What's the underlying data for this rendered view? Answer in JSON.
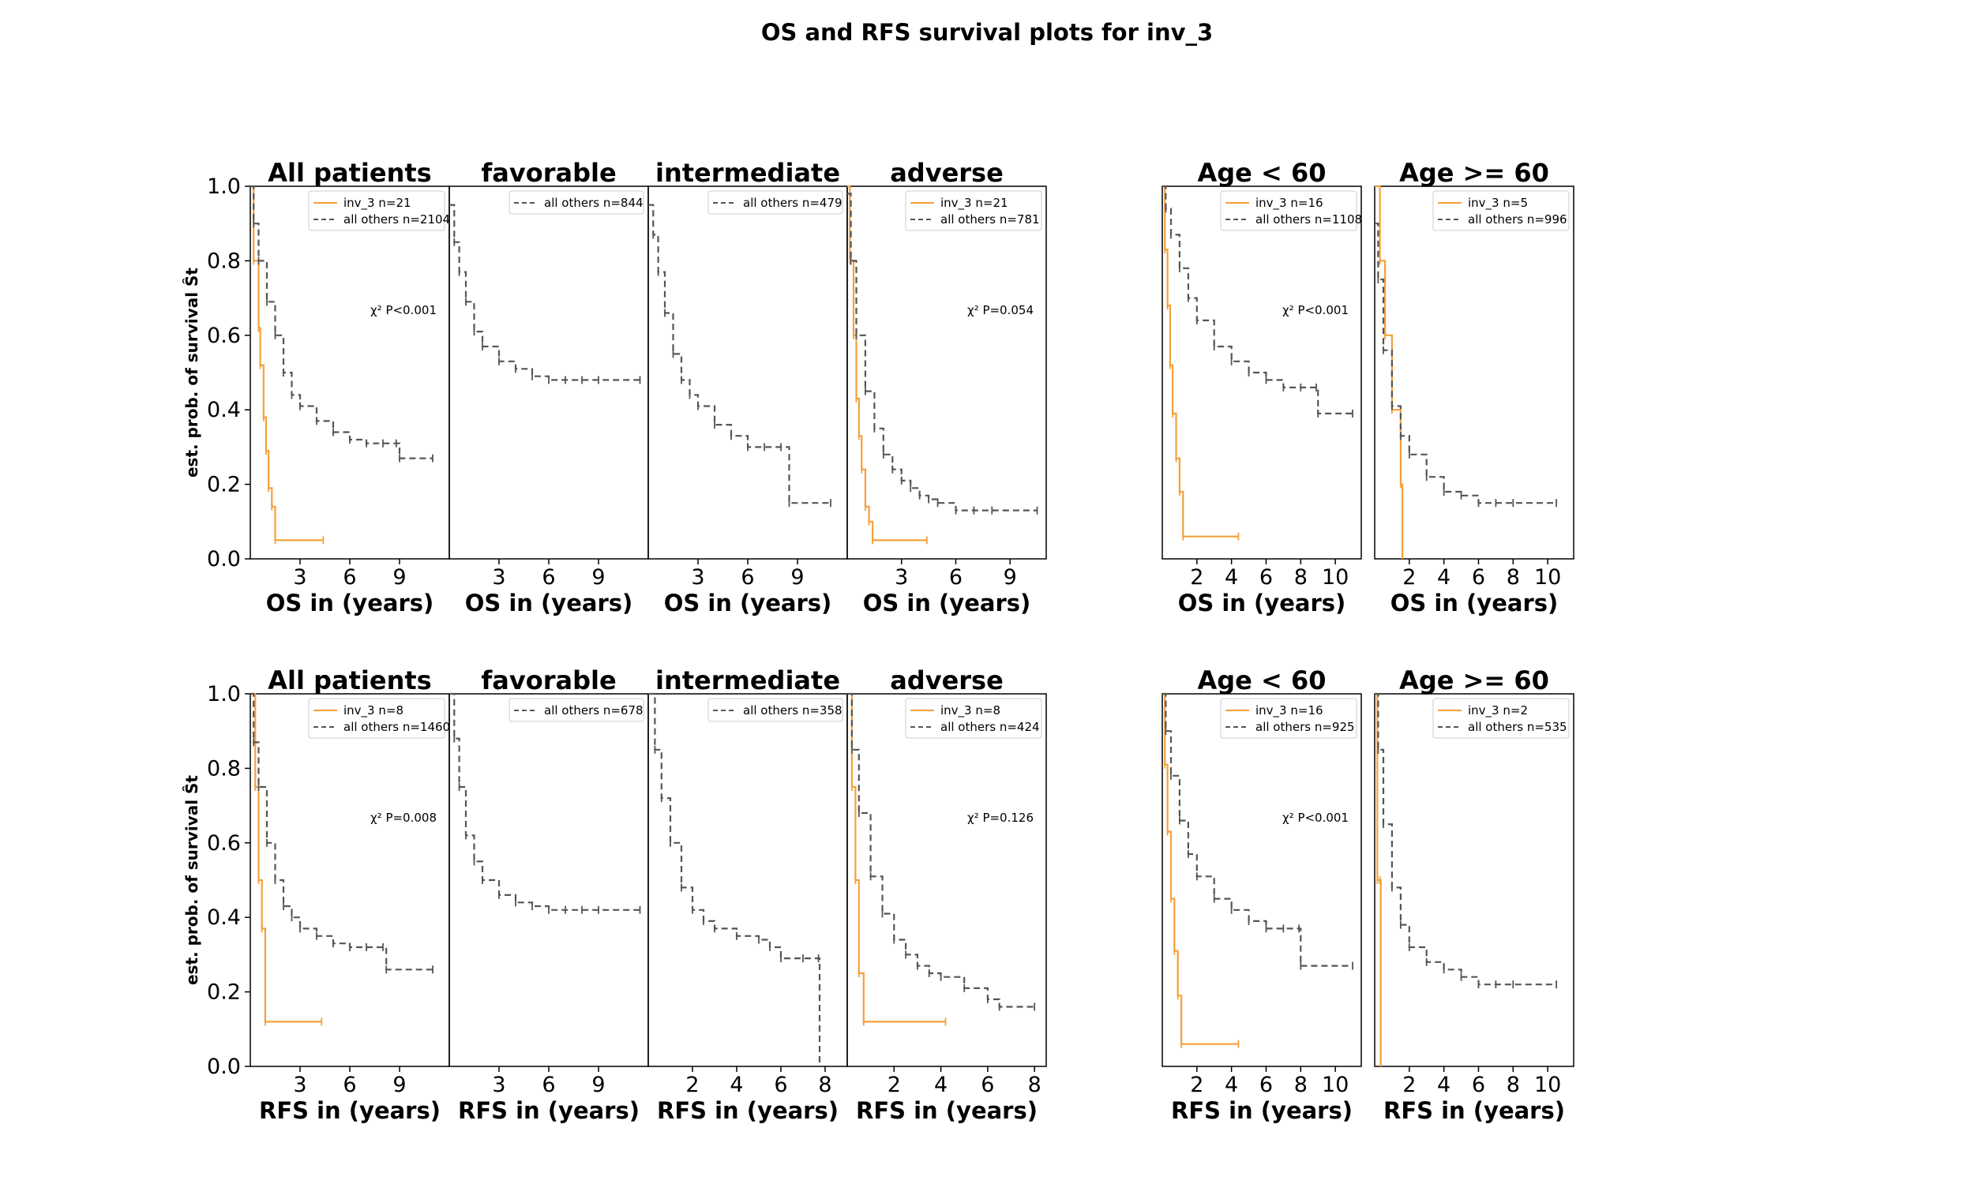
{
  "figure_title": "OS and RFS survival plots for inv_3",
  "colors": {
    "inv3": "#f5a03a",
    "others": "#555555",
    "axes": "#000000"
  },
  "chart_data": [
    {
      "type": "line",
      "row": 0,
      "col": 0,
      "title": "All patients",
      "xlabel": "OS in (years)",
      "ylabel": "est. prob. of survival Ŝt",
      "xlim": [
        0,
        12
      ],
      "xticks": [
        3,
        6,
        9
      ],
      "ylim": [
        0,
        1
      ],
      "yticks": [
        "0.0",
        "0.2",
        "0.4",
        "0.6",
        "0.8",
        "1.0"
      ],
      "pvalue": "χ² P<0.001",
      "series": [
        {
          "name": "inv_3 n=21",
          "style": "solid",
          "x": [
            0,
            0.2,
            0.5,
            0.6,
            0.8,
            0.95,
            1.1,
            1.3,
            1.5,
            4.4
          ],
          "y": [
            1.0,
            0.8,
            0.62,
            0.52,
            0.38,
            0.29,
            0.19,
            0.14,
            0.05,
            0.05
          ]
        },
        {
          "name": "all others n=2104",
          "style": "dashed",
          "x": [
            0,
            0.2,
            0.5,
            1,
            1.5,
            2,
            2.5,
            3,
            4,
            5,
            6,
            7,
            8,
            8.8,
            9,
            11
          ],
          "y": [
            1.0,
            0.9,
            0.8,
            0.69,
            0.6,
            0.5,
            0.44,
            0.41,
            0.37,
            0.34,
            0.32,
            0.31,
            0.31,
            0.31,
            0.27,
            0.27
          ]
        }
      ]
    },
    {
      "type": "line",
      "row": 0,
      "col": 1,
      "title": "favorable",
      "xlabel": "OS in (years)",
      "xlim": [
        0,
        12
      ],
      "xticks": [
        3,
        6,
        9
      ],
      "ylim": [
        0,
        1
      ],
      "series": [
        {
          "name": "all others n=844",
          "style": "dashed",
          "x": [
            0,
            0.3,
            0.6,
            1,
            1.5,
            2,
            3,
            4,
            5,
            6,
            7,
            8,
            9,
            11.5
          ],
          "y": [
            0.95,
            0.85,
            0.77,
            0.69,
            0.61,
            0.57,
            0.53,
            0.51,
            0.49,
            0.48,
            0.48,
            0.48,
            0.48,
            0.48
          ]
        }
      ]
    },
    {
      "type": "line",
      "row": 0,
      "col": 2,
      "title": "intermediate",
      "xlabel": "OS in (years)",
      "xlim": [
        0,
        12
      ],
      "xticks": [
        3,
        6,
        9
      ],
      "ylim": [
        0,
        1
      ],
      "series": [
        {
          "name": "all others n=479",
          "style": "dashed",
          "x": [
            0,
            0.3,
            0.6,
            1,
            1.5,
            2,
            2.5,
            3,
            4,
            5,
            6,
            7,
            8,
            8.5,
            11
          ],
          "y": [
            0.95,
            0.87,
            0.77,
            0.66,
            0.55,
            0.48,
            0.44,
            0.41,
            0.36,
            0.33,
            0.3,
            0.3,
            0.3,
            0.15,
            0.15
          ]
        }
      ]
    },
    {
      "type": "line",
      "row": 0,
      "col": 3,
      "title": "adverse",
      "xlabel": "OS in (years)",
      "xlim": [
        0,
        11
      ],
      "xticks": [
        3,
        6,
        9
      ],
      "ylim": [
        0,
        1
      ],
      "pvalue": "χ² P=0.054",
      "series": [
        {
          "name": "inv_3 n=21",
          "style": "solid",
          "x": [
            0,
            0.15,
            0.35,
            0.5,
            0.65,
            0.8,
            1.0,
            1.2,
            1.4,
            4.4
          ],
          "y": [
            1.0,
            0.8,
            0.6,
            0.43,
            0.33,
            0.24,
            0.14,
            0.1,
            0.05,
            0.05
          ]
        },
        {
          "name": "all others n=781",
          "style": "dashed",
          "x": [
            0,
            0.2,
            0.5,
            1,
            1.5,
            2,
            2.5,
            3,
            3.5,
            4,
            4.5,
            5,
            6,
            7,
            8,
            10.5
          ],
          "y": [
            0.98,
            0.8,
            0.6,
            0.45,
            0.35,
            0.28,
            0.24,
            0.21,
            0.19,
            0.17,
            0.16,
            0.15,
            0.13,
            0.13,
            0.13,
            0.13
          ]
        }
      ]
    },
    {
      "type": "line",
      "row": 0,
      "col": 4,
      "title": "Age < 60",
      "xlabel": "OS in (years)",
      "xlim": [
        0,
        11.5
      ],
      "xticks": [
        2,
        4,
        6,
        8,
        10
      ],
      "ylim": [
        0,
        1
      ],
      "pvalue": "χ² P<0.001",
      "series": [
        {
          "name": "inv_3 n=16",
          "style": "solid",
          "x": [
            0,
            0.15,
            0.3,
            0.45,
            0.6,
            0.8,
            1.0,
            1.2,
            4.4
          ],
          "y": [
            1.0,
            0.83,
            0.68,
            0.52,
            0.39,
            0.27,
            0.18,
            0.06,
            0.06
          ]
        },
        {
          "name": "all others n=1108",
          "style": "dashed",
          "x": [
            0,
            0.2,
            0.5,
            1,
            1.5,
            2,
            3,
            4,
            5,
            6,
            7,
            8,
            8.9,
            9,
            11
          ],
          "y": [
            1.0,
            0.94,
            0.87,
            0.78,
            0.7,
            0.64,
            0.57,
            0.53,
            0.5,
            0.48,
            0.46,
            0.46,
            0.46,
            0.39,
            0.39
          ]
        }
      ]
    },
    {
      "type": "line",
      "row": 0,
      "col": 5,
      "title": "Age >= 60",
      "xlabel": "OS in (years)",
      "xlim": [
        0,
        11.5
      ],
      "xticks": [
        2,
        4,
        6,
        8,
        10
      ],
      "ylim": [
        0,
        1
      ],
      "series": [
        {
          "name": "inv_3 n=5",
          "style": "solid",
          "x": [
            0,
            0.3,
            0.6,
            1.0,
            1.5,
            1.6
          ],
          "y": [
            1.0,
            0.8,
            0.6,
            0.4,
            0.2,
            0.0
          ]
        },
        {
          "name": "all others n=996",
          "style": "dashed",
          "x": [
            0,
            0.2,
            0.5,
            1,
            1.5,
            2,
            3,
            4,
            5,
            6,
            7,
            8,
            10.5
          ],
          "y": [
            0.9,
            0.75,
            0.56,
            0.41,
            0.33,
            0.28,
            0.22,
            0.18,
            0.17,
            0.15,
            0.15,
            0.15,
            0.15
          ]
        }
      ]
    },
    {
      "type": "line",
      "row": 1,
      "col": 0,
      "title": "All patients",
      "xlabel": "RFS in (years)",
      "ylabel": "est. prob. of survival Ŝt",
      "xlim": [
        0,
        12
      ],
      "xticks": [
        3,
        6,
        9
      ],
      "ylim": [
        0,
        1
      ],
      "yticks": [
        "0.0",
        "0.2",
        "0.4",
        "0.6",
        "0.8",
        "1.0"
      ],
      "pvalue": "χ² P=0.008",
      "series": [
        {
          "name": "inv_3 n=8",
          "style": "solid",
          "x": [
            0,
            0.3,
            0.5,
            0.7,
            0.9,
            4.3
          ],
          "y": [
            1.0,
            0.75,
            0.5,
            0.37,
            0.12,
            0.12
          ]
        },
        {
          "name": "all others n=1460",
          "style": "dashed",
          "x": [
            0,
            0.2,
            0.5,
            1,
            1.5,
            2,
            2.5,
            3,
            4,
            5,
            6,
            7,
            8,
            8.2,
            11
          ],
          "y": [
            1.0,
            0.87,
            0.75,
            0.6,
            0.5,
            0.43,
            0.4,
            0.37,
            0.35,
            0.33,
            0.32,
            0.32,
            0.32,
            0.26,
            0.26
          ]
        }
      ]
    },
    {
      "type": "line",
      "row": 1,
      "col": 1,
      "title": "favorable",
      "xlabel": "RFS in (years)",
      "xlim": [
        0,
        12
      ],
      "xticks": [
        3,
        6,
        9
      ],
      "ylim": [
        0,
        1
      ],
      "series": [
        {
          "name": "all others n=678",
          "style": "dashed",
          "x": [
            0,
            0.3,
            0.6,
            1,
            1.5,
            2,
            3,
            4,
            5,
            6,
            7,
            8,
            9,
            11.5
          ],
          "y": [
            1.0,
            0.88,
            0.75,
            0.62,
            0.55,
            0.5,
            0.46,
            0.44,
            0.43,
            0.42,
            0.42,
            0.42,
            0.42,
            0.42
          ]
        }
      ]
    },
    {
      "type": "line",
      "row": 1,
      "col": 2,
      "title": "intermediate",
      "xlabel": "RFS in (years)",
      "xlim": [
        0,
        9
      ],
      "xticks": [
        2,
        4,
        6,
        8
      ],
      "ylim": [
        0,
        1
      ],
      "series": [
        {
          "name": "all others n=358",
          "style": "dashed",
          "x": [
            0,
            0.3,
            0.6,
            1,
            1.5,
            2,
            2.5,
            3,
            4,
            5,
            5.5,
            6,
            7,
            7.7,
            7.75
          ],
          "y": [
            1.0,
            0.85,
            0.72,
            0.6,
            0.48,
            0.42,
            0.39,
            0.37,
            0.35,
            0.34,
            0.32,
            0.29,
            0.29,
            0.29,
            0.0
          ]
        }
      ]
    },
    {
      "type": "line",
      "row": 1,
      "col": 3,
      "title": "adverse",
      "xlabel": "RFS in (years)",
      "xlim": [
        0,
        8.5
      ],
      "xticks": [
        2,
        4,
        6,
        8
      ],
      "ylim": [
        0,
        1
      ],
      "pvalue": "χ² P=0.126",
      "series": [
        {
          "name": "inv_3 n=8",
          "style": "solid",
          "x": [
            0,
            0.2,
            0.35,
            0.5,
            0.7,
            4.2
          ],
          "y": [
            1.0,
            0.75,
            0.5,
            0.25,
            0.12,
            0.12
          ]
        },
        {
          "name": "all others n=424",
          "style": "dashed",
          "x": [
            0,
            0.2,
            0.5,
            1,
            1.5,
            2,
            2.5,
            3,
            3.5,
            4,
            5,
            6,
            6.5,
            8
          ],
          "y": [
            1.0,
            0.85,
            0.68,
            0.51,
            0.41,
            0.34,
            0.3,
            0.27,
            0.25,
            0.24,
            0.21,
            0.18,
            0.16,
            0.16
          ]
        }
      ]
    },
    {
      "type": "line",
      "row": 1,
      "col": 4,
      "title": "Age < 60",
      "xlabel": "RFS in (years)",
      "xlim": [
        0,
        11.5
      ],
      "xticks": [
        2,
        4,
        6,
        8,
        10
      ],
      "ylim": [
        0,
        1
      ],
      "pvalue": "χ² P<0.001",
      "series": [
        {
          "name": "inv_3 n=16",
          "style": "solid",
          "x": [
            0,
            0.15,
            0.3,
            0.5,
            0.7,
            0.9,
            1.1,
            4.4
          ],
          "y": [
            1.0,
            0.81,
            0.63,
            0.45,
            0.31,
            0.19,
            0.06,
            0.06
          ]
        },
        {
          "name": "all others n=925",
          "style": "dashed",
          "x": [
            0,
            0.2,
            0.5,
            1,
            1.5,
            2,
            3,
            4,
            5,
            6,
            7,
            7.9,
            8,
            11
          ],
          "y": [
            1.0,
            0.9,
            0.78,
            0.66,
            0.57,
            0.51,
            0.45,
            0.42,
            0.39,
            0.37,
            0.37,
            0.37,
            0.27,
            0.27
          ]
        }
      ]
    },
    {
      "type": "line",
      "row": 1,
      "col": 5,
      "title": "Age >= 60",
      "xlabel": "RFS in (years)",
      "xlim": [
        0,
        11.5
      ],
      "xticks": [
        2,
        4,
        6,
        8,
        10
      ],
      "ylim": [
        0,
        1
      ],
      "series": [
        {
          "name": "inv_3 n=2",
          "style": "solid",
          "x": [
            0,
            0.15,
            0.3,
            0.35
          ],
          "y": [
            1.0,
            0.5,
            0.5,
            0.0
          ]
        },
        {
          "name": "all others n=535",
          "style": "dashed",
          "x": [
            0,
            0.2,
            0.5,
            1,
            1.5,
            2,
            3,
            4,
            5,
            6,
            7,
            8,
            10.5
          ],
          "y": [
            1.0,
            0.85,
            0.65,
            0.48,
            0.38,
            0.32,
            0.28,
            0.26,
            0.24,
            0.22,
            0.22,
            0.22,
            0.22
          ]
        }
      ]
    }
  ]
}
